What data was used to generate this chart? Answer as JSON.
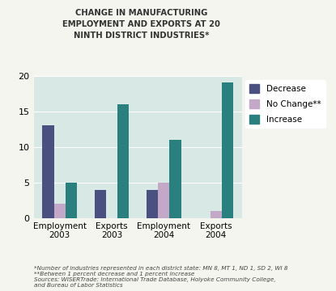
{
  "title": "CHANGE IN MANUFACTURING\nEMPLOYMENT AND EXPORTS AT 20\nNINTH DISTRICT INDUSTRIES*",
  "groups": [
    "Employment\n2003",
    "Exports\n2003",
    "Employment\n2004",
    "Exports\n2004"
  ],
  "series": {
    "Decrease": [
      13,
      4,
      4,
      0
    ],
    "No Change**": [
      2,
      0,
      5,
      1
    ],
    "Increase": [
      5,
      16,
      11,
      19
    ]
  },
  "colors": {
    "Decrease": "#4a5180",
    "No Change**": "#c4a8c8",
    "Increase": "#2a7f7f"
  },
  "ylim": [
    0,
    20
  ],
  "yticks": [
    0,
    5,
    10,
    15,
    20
  ],
  "background_color": "#d8e8e4",
  "plot_bg": "#d8e8e4",
  "outer_bg": "#f5f5f0",
  "footnote1": "*Number of industries represented in each district state: MN 8, MT 1, ND 1, SD 2, WI 8",
  "footnote2": "**Between 1 percent decrease and 1 percent increase",
  "footnote3": "Sources: WISERTrade: International Trade Database, Holyoke Community College,",
  "footnote4": "and Bureau of Labor Statistics"
}
